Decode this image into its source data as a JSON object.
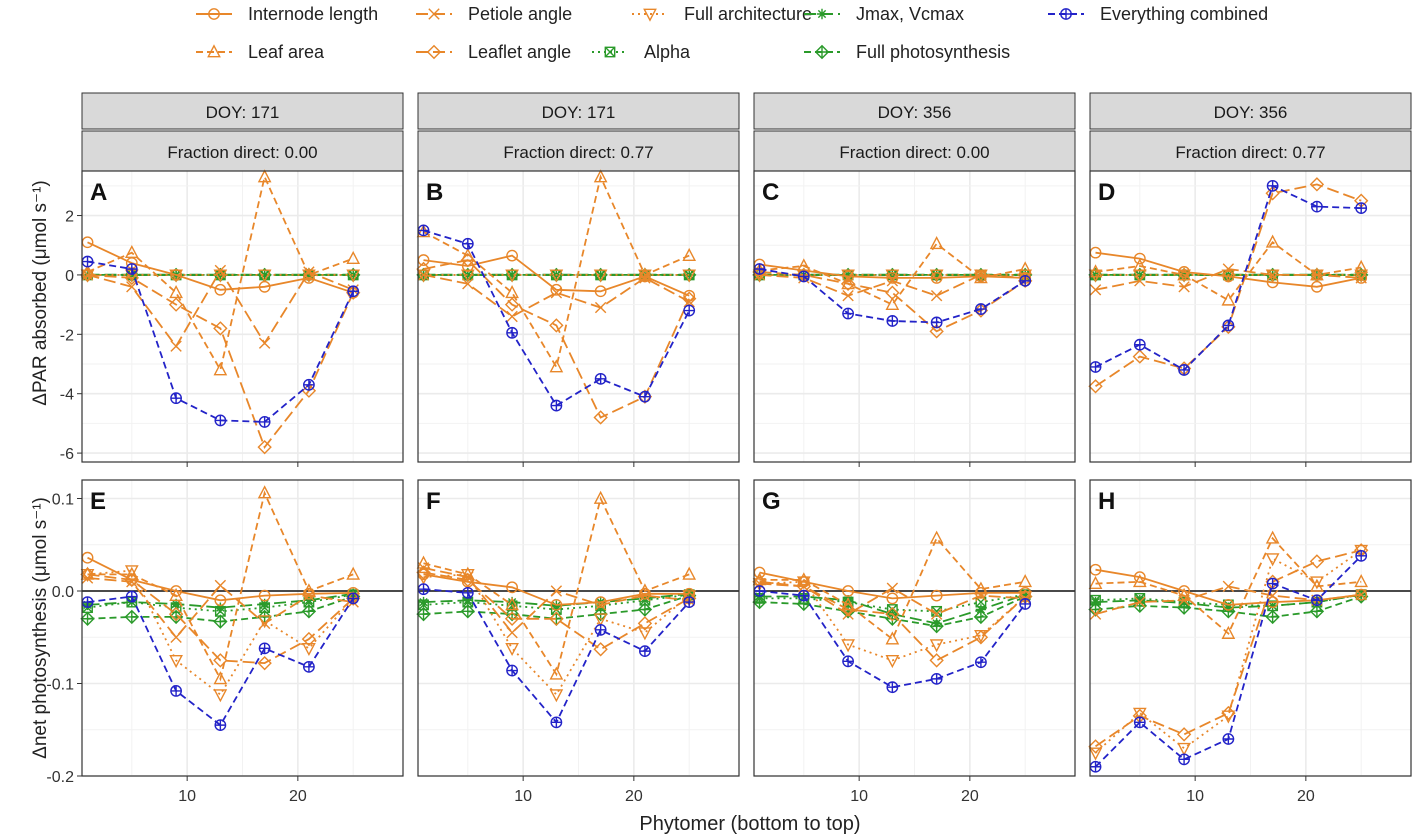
{
  "legend": {
    "items": [
      {
        "key": "internode",
        "label": "Internode length"
      },
      {
        "key": "petiole",
        "label": "Petiole angle"
      },
      {
        "key": "fullarch",
        "label": "Full architecture"
      },
      {
        "key": "jmax",
        "label": "Jmax, Vcmax"
      },
      {
        "key": "combined",
        "label": "Everything combined"
      },
      {
        "key": "leafarea",
        "label": "Leaf area"
      },
      {
        "key": "leaflet",
        "label": "Leaflet angle"
      },
      {
        "key": "alpha",
        "label": "Alpha"
      },
      {
        "key": "fullphoto",
        "label": "Full photosynthesis"
      }
    ]
  },
  "colors": {
    "orange": "#E8872A",
    "green": "#2A9A2A",
    "blue": "#2323C8",
    "strip_bg": "#D9D9D9",
    "grid": "#EBEBEB"
  },
  "series_style": {
    "internode": {
      "color": "orange",
      "dash": "solid",
      "marker": "circle"
    },
    "petiole": {
      "color": "orange",
      "dash": "longdash",
      "marker": "x"
    },
    "fullarch": {
      "color": "orange",
      "dash": "dotted",
      "marker": "triangle-down"
    },
    "jmax": {
      "color": "green",
      "dash": "longdash",
      "marker": "asterisk"
    },
    "combined": {
      "color": "blue",
      "dash": "dashed",
      "marker": "circle-plus"
    },
    "leafarea": {
      "color": "orange",
      "dash": "dashed",
      "marker": "triangle-up"
    },
    "leaflet": {
      "color": "orange",
      "dash": "longdash",
      "marker": "diamond"
    },
    "alpha": {
      "color": "green",
      "dash": "dotted",
      "marker": "square-x"
    },
    "fullphoto": {
      "color": "green",
      "dash": "dashed",
      "marker": "diamond-plus"
    }
  },
  "axes": {
    "x_label": "Phytomer (bottom to top)",
    "x_ticks": [
      10,
      20
    ],
    "x_range": [
      0.5,
      29.5
    ],
    "top_y_label": "ΔPAR absorbed (μmol s⁻¹)",
    "top_y_ticks": [
      "2",
      "0",
      "-2",
      "-4",
      "-6"
    ],
    "top_y_range": [
      -6.3,
      3.5
    ],
    "bottom_y_label": "Δnet photosynthesis (μmol s⁻¹)",
    "bottom_y_ticks": [
      "0.1",
      "0.0",
      "-0.1",
      "-0.2"
    ],
    "bottom_y_range": [
      -0.2,
      0.12
    ]
  },
  "columns": [
    {
      "doy": "DOY: 171",
      "frac": "Fraction direct: 0.00"
    },
    {
      "doy": "DOY: 171",
      "frac": "Fraction direct: 0.77"
    },
    {
      "doy": "DOY: 356",
      "frac": "Fraction direct: 0.00"
    },
    {
      "doy": "DOY: 356",
      "frac": "Fraction direct: 0.77"
    }
  ],
  "chart_data": [
    {
      "panel": "A",
      "row": "top",
      "col": 0,
      "type": "line",
      "x": [
        1,
        5,
        9,
        13,
        17,
        21,
        25
      ],
      "series": {
        "internode": [
          1.1,
          0.4,
          0.0,
          -0.5,
          -0.4,
          -0.1,
          -0.6
        ],
        "leafarea": [
          0.1,
          0.75,
          -0.6,
          -3.2,
          3.3,
          0.0,
          0.55
        ],
        "petiole": [
          0.0,
          -0.4,
          -2.4,
          0.15,
          -2.3,
          0.1,
          -0.5
        ],
        "leaflet": [
          0.0,
          -0.1,
          -1.0,
          -1.8,
          -5.8,
          -3.9,
          -0.6
        ],
        "fullarch": [
          0.0,
          0.0,
          0.0,
          0.0,
          0.0,
          0.0,
          0.0
        ],
        "alpha": [
          0.0,
          0.0,
          0.0,
          0.0,
          0.0,
          0.0,
          0.0
        ],
        "jmax": [
          0.0,
          0.0,
          0.0,
          0.0,
          0.0,
          0.0,
          0.0
        ],
        "fullphoto": [
          0.0,
          0.0,
          0.0,
          0.0,
          0.0,
          0.0,
          0.0
        ],
        "combined": [
          0.45,
          0.2,
          -4.15,
          -4.9,
          -4.95,
          -3.7,
          -0.55
        ]
      }
    },
    {
      "panel": "B",
      "row": "top",
      "col": 1,
      "type": "line",
      "x": [
        1,
        5,
        9,
        13,
        17,
        21,
        25
      ],
      "series": {
        "internode": [
          0.5,
          0.3,
          0.65,
          -0.5,
          -0.55,
          -0.05,
          -0.7
        ],
        "leafarea": [
          1.45,
          0.65,
          -0.6,
          -3.1,
          3.3,
          0.0,
          0.65
        ],
        "petiole": [
          0.0,
          -0.3,
          -1.4,
          -0.6,
          -1.1,
          -0.1,
          -0.9
        ],
        "leaflet": [
          0.2,
          0.5,
          -1.0,
          -1.7,
          -4.8,
          -4.1,
          -0.8
        ],
        "fullarch": [
          0.0,
          0.0,
          0.0,
          0.0,
          0.0,
          0.0,
          0.0
        ],
        "alpha": [
          0.0,
          0.0,
          0.0,
          0.0,
          0.0,
          0.0,
          0.0
        ],
        "jmax": [
          0.0,
          0.0,
          0.0,
          0.0,
          0.0,
          0.0,
          0.0
        ],
        "fullphoto": [
          0.0,
          0.0,
          0.0,
          0.0,
          0.0,
          0.0,
          0.0
        ],
        "combined": [
          1.5,
          1.05,
          -1.95,
          -4.4,
          -3.5,
          -4.1,
          -1.2
        ]
      }
    },
    {
      "panel": "C",
      "row": "top",
      "col": 2,
      "type": "line",
      "x": [
        1,
        5,
        9,
        13,
        17,
        21,
        25
      ],
      "series": {
        "internode": [
          0.35,
          0.15,
          -0.05,
          -0.1,
          -0.1,
          -0.05,
          -0.1
        ],
        "leafarea": [
          0.15,
          0.3,
          -0.3,
          -1.0,
          1.05,
          -0.1,
          0.2
        ],
        "petiole": [
          0.0,
          -0.1,
          -0.7,
          -0.2,
          -0.7,
          0.0,
          -0.1
        ],
        "leaflet": [
          0.1,
          0.0,
          -0.3,
          -0.6,
          -1.9,
          -1.2,
          -0.2
        ],
        "fullarch": [
          0.0,
          0.0,
          0.0,
          0.0,
          0.0,
          0.0,
          0.0
        ],
        "alpha": [
          0.0,
          0.0,
          0.0,
          0.0,
          0.0,
          0.0,
          0.0
        ],
        "jmax": [
          0.0,
          0.0,
          0.0,
          0.0,
          0.0,
          0.0,
          0.0
        ],
        "fullphoto": [
          0.0,
          0.0,
          0.0,
          0.0,
          0.0,
          0.0,
          0.0
        ],
        "combined": [
          0.2,
          -0.05,
          -1.3,
          -1.55,
          -1.6,
          -1.15,
          -0.2
        ]
      }
    },
    {
      "panel": "D",
      "row": "top",
      "col": 3,
      "type": "line",
      "x": [
        1,
        5,
        9,
        13,
        17,
        21,
        25
      ],
      "series": {
        "internode": [
          0.75,
          0.55,
          0.1,
          -0.05,
          -0.25,
          -0.4,
          -0.1
        ],
        "leafarea": [
          0.1,
          0.3,
          0.0,
          -0.85,
          1.1,
          0.0,
          0.25
        ],
        "petiole": [
          -0.5,
          -0.2,
          -0.4,
          0.2,
          0.0,
          0.0,
          -0.1
        ],
        "leaflet": [
          -3.75,
          -2.75,
          -3.15,
          -1.75,
          2.75,
          3.05,
          2.5
        ],
        "fullarch": [
          0.0,
          0.0,
          0.0,
          0.0,
          0.0,
          0.0,
          0.0
        ],
        "alpha": [
          0.0,
          0.0,
          0.0,
          0.0,
          0.0,
          0.0,
          0.0
        ],
        "jmax": [
          0.0,
          0.0,
          0.0,
          0.0,
          0.0,
          0.0,
          0.0
        ],
        "fullphoto": [
          0.0,
          0.0,
          0.0,
          0.0,
          0.0,
          0.0,
          0.0
        ],
        "combined": [
          -3.1,
          -2.35,
          -3.2,
          -1.7,
          3.0,
          2.3,
          2.25
        ]
      }
    },
    {
      "panel": "E",
      "row": "bottom",
      "col": 0,
      "type": "line",
      "x": [
        1,
        5,
        9,
        13,
        17,
        21,
        25
      ],
      "series": {
        "internode": [
          0.036,
          0.012,
          0.0,
          -0.01,
          -0.005,
          -0.003,
          -0.002
        ],
        "leafarea": [
          0.018,
          0.018,
          -0.005,
          -0.095,
          0.106,
          0.0,
          0.018
        ],
        "petiole": [
          0.014,
          0.01,
          -0.05,
          0.006,
          -0.035,
          -0.005,
          -0.012
        ],
        "leaflet": [
          0.018,
          0.012,
          -0.025,
          -0.075,
          -0.078,
          -0.052,
          -0.008
        ],
        "fullarch": [
          0.018,
          0.022,
          -0.075,
          -0.112,
          -0.032,
          -0.062,
          -0.008
        ],
        "alpha": [
          -0.018,
          -0.012,
          -0.018,
          -0.022,
          -0.018,
          -0.012,
          -0.004
        ],
        "jmax": [
          -0.015,
          -0.012,
          -0.014,
          -0.018,
          -0.014,
          -0.01,
          -0.003
        ],
        "fullphoto": [
          -0.03,
          -0.028,
          -0.028,
          -0.033,
          -0.028,
          -0.022,
          -0.006
        ],
        "combined": [
          -0.012,
          -0.006,
          -0.108,
          -0.145,
          -0.062,
          -0.082,
          -0.008
        ]
      }
    },
    {
      "panel": "F",
      "row": "bottom",
      "col": 1,
      "type": "line",
      "x": [
        1,
        5,
        9,
        13,
        17,
        21,
        25
      ],
      "series": {
        "internode": [
          0.018,
          0.01,
          0.004,
          -0.015,
          -0.012,
          -0.003,
          -0.003
        ],
        "leafarea": [
          0.03,
          0.018,
          -0.015,
          -0.09,
          0.1,
          0.0,
          0.018
        ],
        "petiole": [
          0.025,
          0.015,
          -0.045,
          0.0,
          -0.015,
          -0.005,
          -0.01
        ],
        "leaflet": [
          0.02,
          0.012,
          -0.03,
          -0.03,
          -0.063,
          -0.035,
          -0.008
        ],
        "fullarch": [
          0.015,
          0.018,
          -0.062,
          -0.112,
          -0.03,
          -0.045,
          -0.005
        ],
        "alpha": [
          -0.015,
          -0.012,
          -0.016,
          -0.02,
          -0.016,
          -0.01,
          -0.004
        ],
        "jmax": [
          -0.012,
          -0.01,
          -0.012,
          -0.016,
          -0.012,
          -0.008,
          -0.003
        ],
        "fullphoto": [
          -0.025,
          -0.022,
          -0.025,
          -0.03,
          -0.025,
          -0.02,
          -0.005
        ],
        "combined": [
          0.002,
          -0.002,
          -0.086,
          -0.142,
          -0.042,
          -0.065,
          -0.012
        ]
      }
    },
    {
      "panel": "G",
      "row": "bottom",
      "col": 2,
      "type": "line",
      "x": [
        1,
        5,
        9,
        13,
        17,
        21,
        25
      ],
      "series": {
        "internode": [
          0.02,
          0.01,
          0.0,
          -0.008,
          -0.005,
          -0.002,
          -0.002
        ],
        "leafarea": [
          0.012,
          0.012,
          -0.015,
          -0.052,
          0.057,
          0.002,
          0.01
        ],
        "petiole": [
          0.008,
          0.005,
          -0.025,
          0.003,
          -0.025,
          -0.005,
          -0.008
        ],
        "leaflet": [
          0.01,
          0.005,
          -0.02,
          -0.025,
          -0.075,
          -0.05,
          -0.006
        ],
        "fullarch": [
          0.008,
          0.01,
          -0.058,
          -0.075,
          -0.058,
          -0.048,
          -0.006
        ],
        "alpha": [
          -0.008,
          -0.008,
          -0.012,
          -0.02,
          -0.022,
          -0.012,
          -0.004
        ],
        "jmax": [
          -0.006,
          -0.006,
          -0.01,
          -0.025,
          -0.035,
          -0.02,
          -0.004
        ],
        "fullphoto": [
          -0.012,
          -0.014,
          -0.022,
          -0.03,
          -0.038,
          -0.028,
          -0.006
        ],
        "combined": [
          0.0,
          -0.005,
          -0.076,
          -0.104,
          -0.095,
          -0.077,
          -0.014
        ]
      }
    },
    {
      "panel": "H",
      "row": "bottom",
      "col": 3,
      "type": "line",
      "x": [
        1,
        5,
        9,
        13,
        17,
        21,
        25
      ],
      "series": {
        "internode": [
          0.023,
          0.015,
          0.0,
          -0.015,
          -0.012,
          -0.01,
          -0.004
        ],
        "leafarea": [
          0.008,
          0.01,
          -0.005,
          -0.046,
          0.057,
          0.005,
          0.01
        ],
        "petiole": [
          -0.025,
          -0.012,
          -0.01,
          0.005,
          -0.005,
          -0.01,
          -0.004
        ],
        "leaflet": [
          -0.168,
          -0.135,
          -0.155,
          -0.132,
          0.01,
          0.032,
          0.044
        ],
        "fullarch": [
          -0.175,
          -0.132,
          -0.17,
          -0.135,
          0.035,
          0.01,
          0.044
        ],
        "alpha": [
          -0.01,
          -0.008,
          -0.012,
          -0.015,
          -0.016,
          -0.012,
          -0.004
        ],
        "jmax": [
          -0.012,
          -0.01,
          -0.013,
          -0.018,
          -0.016,
          -0.012,
          -0.004
        ],
        "fullphoto": [
          -0.02,
          -0.016,
          -0.018,
          -0.022,
          -0.028,
          -0.022,
          -0.006
        ],
        "combined": [
          -0.19,
          -0.142,
          -0.182,
          -0.16,
          0.008,
          -0.01,
          0.038
        ]
      }
    }
  ]
}
